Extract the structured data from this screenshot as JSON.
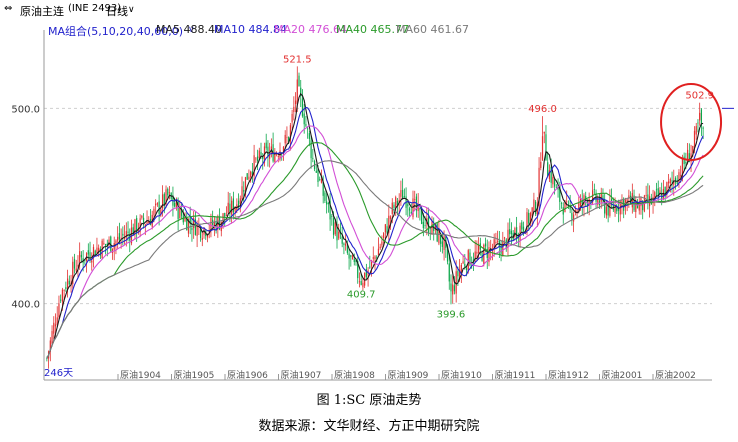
{
  "toolbar": {
    "icon": "link-icon",
    "symbol": "原油主连",
    "code": "(INE 2493)",
    "period": "日线",
    "period_arrow": "∨"
  },
  "indicators": {
    "group": "MA组合(5,10,20,40,60,0)",
    "group_arrow": "∨",
    "ma5": "MA5 488.40",
    "ma10": "MA10 484.84",
    "ma20": "MA20 476.64",
    "ma40": "MA40 465.77",
    "ma60": "MA60 461.67"
  },
  "colors": {
    "up": "#e23030",
    "down": "#0aa64a",
    "ma5": "#1a1a1a",
    "ma10": "#2222cc",
    "ma20": "#d24fd6",
    "ma40": "#2a9a2a",
    "ma60": "#7a7a7a",
    "peak_label": "#e23030",
    "trough_label": "#2a9a2a",
    "highlight_circle": "#e02020",
    "grid": "#cfcfcf"
  },
  "chart_data": {
    "type": "candlestick",
    "title": "",
    "ylim": [
      365,
      535
    ],
    "y_ticks": [
      "500.0",
      "400.0"
    ],
    "y_tick_values": [
      500,
      400
    ],
    "x_ticks": [
      "原油1904",
      "原油1905",
      "原油1906",
      "原油1907",
      "原油1908",
      "原油1909",
      "原油1910",
      "原油1911",
      "原油1912",
      "原油2001",
      "原油2002"
    ],
    "bar_count": "246天",
    "annotations": [
      {
        "text": "521.5",
        "value": 521.5,
        "kind": "high",
        "index": 145
      },
      {
        "text": "496.0",
        "value": 496.0,
        "kind": "high",
        "index": 287
      },
      {
        "text": "502.9",
        "value": 502.9,
        "kind": "high",
        "index": 378
      },
      {
        "text": "409.7",
        "value": 409.7,
        "kind": "low",
        "index": 182
      },
      {
        "text": "399.6",
        "value": 399.6,
        "kind": "low",
        "index": 234
      }
    ],
    "price_path": [
      [
        0,
        372
      ],
      [
        8,
        405
      ],
      [
        18,
        422
      ],
      [
        28,
        428
      ],
      [
        40,
        432
      ],
      [
        50,
        438
      ],
      [
        60,
        444
      ],
      [
        70,
        455
      ],
      [
        80,
        443
      ],
      [
        90,
        438
      ],
      [
        100,
        442
      ],
      [
        110,
        452
      ],
      [
        118,
        470
      ],
      [
        126,
        476
      ],
      [
        133,
        478
      ],
      [
        140,
        485
      ],
      [
        145,
        510
      ],
      [
        148,
        500
      ],
      [
        154,
        474
      ],
      [
        160,
        456
      ],
      [
        166,
        440
      ],
      [
        172,
        428
      ],
      [
        177,
        420
      ],
      [
        182,
        412
      ],
      [
        188,
        420
      ],
      [
        194,
        432
      ],
      [
        200,
        448
      ],
      [
        206,
        456
      ],
      [
        212,
        450
      ],
      [
        218,
        442
      ],
      [
        224,
        438
      ],
      [
        230,
        430
      ],
      [
        234,
        405
      ],
      [
        240,
        420
      ],
      [
        246,
        424
      ],
      [
        252,
        426
      ],
      [
        258,
        428
      ],
      [
        264,
        430
      ],
      [
        270,
        436
      ],
      [
        278,
        442
      ],
      [
        284,
        452
      ],
      [
        287,
        490
      ],
      [
        290,
        470
      ],
      [
        296,
        455
      ],
      [
        302,
        446
      ],
      [
        308,
        450
      ],
      [
        314,
        455
      ],
      [
        320,
        452
      ],
      [
        326,
        448
      ],
      [
        332,
        452
      ],
      [
        338,
        452
      ],
      [
        344,
        450
      ],
      [
        350,
        452
      ],
      [
        356,
        456
      ],
      [
        362,
        462
      ],
      [
        368,
        470
      ],
      [
        374,
        480
      ],
      [
        378,
        494
      ],
      [
        380,
        486
      ]
    ],
    "ma_end_values": {
      "MA5": 488.4,
      "MA10": 484.84,
      "MA20": 476.64,
      "MA40": 465.77,
      "MA60": 461.67
    }
  },
  "captions": {
    "title": "图 1:SC 原油走势",
    "source": "数据来源：文华财经、方正中期研究院"
  }
}
